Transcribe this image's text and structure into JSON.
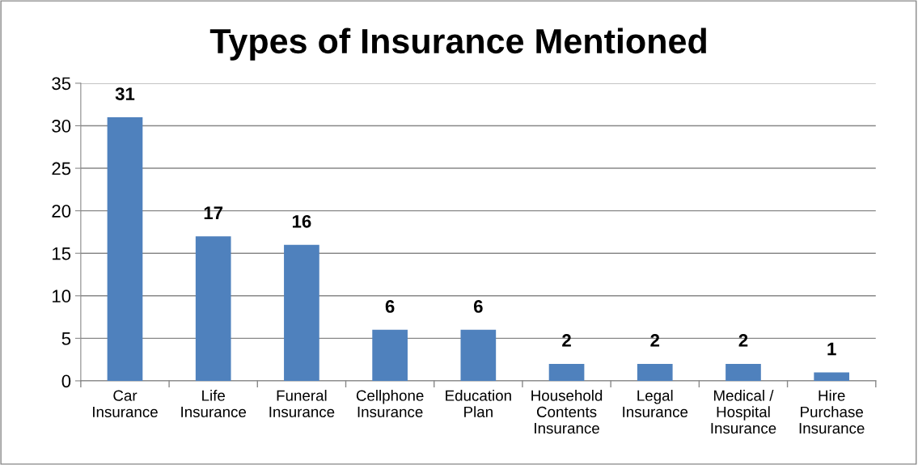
{
  "chart_data": {
    "type": "bar",
    "title": "Types of Insurance Mentioned",
    "categories": [
      "Car\nInsurance",
      "Life\nInsurance",
      "Funeral\nInsurance",
      "Cellphone\nInsurance",
      "Education\nPlan",
      "Household\nContents\nInsurance",
      "Legal\nInsurance",
      "Medical /\nHospital\nInsurance",
      "Hire\nPurchase\nInsurance"
    ],
    "values": [
      31,
      17,
      16,
      6,
      6,
      2,
      2,
      2,
      1
    ],
    "color": "#4f81bd",
    "ylim": [
      0,
      35
    ],
    "yticks": [
      0,
      5,
      10,
      15,
      20,
      25,
      30,
      35
    ],
    "grid": "y",
    "data_labels": true
  }
}
